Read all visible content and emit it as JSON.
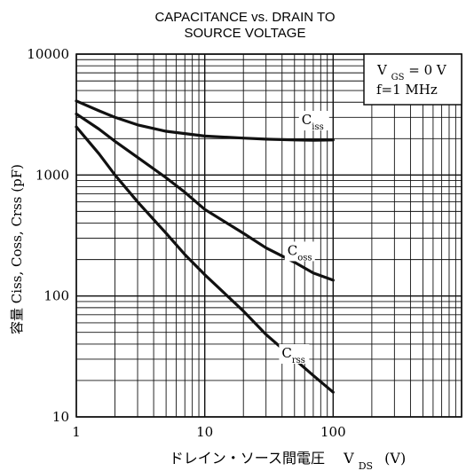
{
  "chart_data": {
    "type": "line",
    "title_lines": [
      "CAPACITANCE vs. DRAIN TO",
      "SOURCE VOLTAGE"
    ],
    "xlabel_main": "ドレイン・ソース間電圧",
    "xlabel_symbol": "V",
    "xlabel_symbol_sub": "DS",
    "xlabel_unit": "(V)",
    "ylabel": "容量 Ciss, Coss, Crss (pF)",
    "x_scale": "log",
    "y_scale": "log",
    "xlim": [
      1,
      1000
    ],
    "ylim": [
      10,
      10000
    ],
    "x_ticks": [
      {
        "value": 1,
        "label": "1"
      },
      {
        "value": 10,
        "label": "10"
      },
      {
        "value": 100,
        "label": "100"
      }
    ],
    "y_ticks": [
      {
        "value": 10000,
        "label": "10000"
      },
      {
        "value": 1000,
        "label": "1000"
      },
      {
        "value": 100,
        "label": "100"
      },
      {
        "value": 10,
        "label": "10"
      }
    ],
    "grid": true,
    "condition_box": {
      "line1_main": "V",
      "line1_sub": "GS",
      "line1_rest": "= 0  V",
      "line2": "f=1  MHz"
    },
    "series": [
      {
        "name": "Ciss",
        "label_main": "C",
        "label_sub": "iss",
        "points": [
          [
            1,
            4100
          ],
          [
            1.5,
            3400
          ],
          [
            2,
            3000
          ],
          [
            3,
            2600
          ],
          [
            5,
            2300
          ],
          [
            7,
            2200
          ],
          [
            10,
            2100
          ],
          [
            20,
            2020
          ],
          [
            30,
            1980
          ],
          [
            50,
            1950
          ],
          [
            70,
            1940
          ],
          [
            100,
            1950
          ]
        ]
      },
      {
        "name": "Coss",
        "label_main": "C",
        "label_sub": "oss",
        "points": [
          [
            1,
            3200
          ],
          [
            1.5,
            2400
          ],
          [
            2,
            1900
          ],
          [
            3,
            1400
          ],
          [
            5,
            950
          ],
          [
            7,
            720
          ],
          [
            10,
            520
          ],
          [
            20,
            330
          ],
          [
            30,
            250
          ],
          [
            50,
            190
          ],
          [
            70,
            155
          ],
          [
            100,
            135
          ]
        ]
      },
      {
        "name": "Crss",
        "label_main": "C",
        "label_sub": "rss",
        "points": [
          [
            1,
            2500
          ],
          [
            1.5,
            1500
          ],
          [
            2,
            1000
          ],
          [
            3,
            600
          ],
          [
            5,
            330
          ],
          [
            7,
            220
          ],
          [
            10,
            150
          ],
          [
            20,
            75
          ],
          [
            30,
            48
          ],
          [
            50,
            30
          ],
          [
            70,
            22
          ],
          [
            100,
            16
          ]
        ]
      }
    ]
  }
}
